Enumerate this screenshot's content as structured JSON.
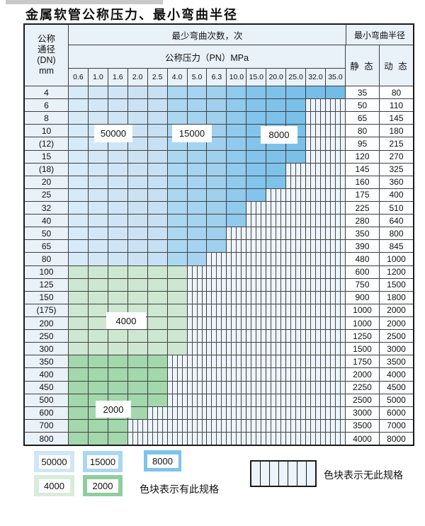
{
  "title": "金属软管公称压力、最小弯曲半径",
  "table": {
    "dn_header_lines": [
      "公称",
      "通径",
      "(DN)",
      "mm"
    ],
    "bend_cycles_label": "最少弯曲次数，次",
    "pn_label": "公称压力（PN）MPa",
    "min_radius_label": "最小弯曲半径",
    "static_label": "静 态",
    "dynamic_label": "动 态",
    "pn_columns": [
      "0.6",
      "1.0",
      "1.6",
      "2.0",
      "2.5",
      "4.0",
      "5.0",
      "6.3",
      "10.0",
      "15.0",
      "20.0",
      "25.0",
      "32.0",
      "35.0"
    ],
    "rows": [
      {
        "dn": "4",
        "colored": 14,
        "zone": "blue",
        "static": "35",
        "dynamic": "80"
      },
      {
        "dn": "6",
        "colored": 12,
        "zone": "blue",
        "static": "50",
        "dynamic": "110"
      },
      {
        "dn": "8",
        "colored": 12,
        "zone": "blue",
        "static": "65",
        "dynamic": "145"
      },
      {
        "dn": "10",
        "colored": 12,
        "zone": "blue",
        "static": "80",
        "dynamic": "180"
      },
      {
        "dn": "(12)",
        "colored": 12,
        "zone": "blue",
        "static": "95",
        "dynamic": "215"
      },
      {
        "dn": "15",
        "colored": 12,
        "zone": "blue",
        "static": "120",
        "dynamic": "270"
      },
      {
        "dn": "(18)",
        "colored": 11,
        "zone": "blue",
        "static": "145",
        "dynamic": "325"
      },
      {
        "dn": "20",
        "colored": 11,
        "zone": "blue",
        "static": "160",
        "dynamic": "360"
      },
      {
        "dn": "25",
        "colored": 10,
        "zone": "blue",
        "static": "175",
        "dynamic": "400"
      },
      {
        "dn": "32",
        "colored": 9,
        "zone": "blue",
        "static": "225",
        "dynamic": "510"
      },
      {
        "dn": "40",
        "colored": 9,
        "zone": "blue",
        "static": "280",
        "dynamic": "640"
      },
      {
        "dn": "50",
        "colored": 8,
        "zone": "blue",
        "static": "350",
        "dynamic": "800"
      },
      {
        "dn": "65",
        "colored": 8,
        "zone": "blue",
        "static": "390",
        "dynamic": "845"
      },
      {
        "dn": "80",
        "colored": 7,
        "zone": "blue",
        "static": "480",
        "dynamic": "1000"
      },
      {
        "dn": "100",
        "colored": 6,
        "zone": "green_light",
        "static": "600",
        "dynamic": "1200"
      },
      {
        "dn": "125",
        "colored": 6,
        "zone": "green_light",
        "static": "750",
        "dynamic": "1500"
      },
      {
        "dn": "150",
        "colored": 6,
        "zone": "green_light",
        "static": "900",
        "dynamic": "1800"
      },
      {
        "dn": "(175)",
        "colored": 6,
        "zone": "green_light",
        "static": "1000",
        "dynamic": "2000"
      },
      {
        "dn": "200",
        "colored": 6,
        "zone": "green_light",
        "static": "1000",
        "dynamic": "2000"
      },
      {
        "dn": "250",
        "colored": 6,
        "zone": "green_light",
        "static": "1250",
        "dynamic": "2500"
      },
      {
        "dn": "300",
        "colored": 6,
        "zone": "green_light",
        "static": "1500",
        "dynamic": "3000"
      },
      {
        "dn": "350",
        "colored": 5,
        "zone": "green_dark",
        "static": "1750",
        "dynamic": "3500"
      },
      {
        "dn": "400",
        "colored": 5,
        "zone": "green_dark",
        "static": "2000",
        "dynamic": "4000"
      },
      {
        "dn": "450",
        "colored": 5,
        "zone": "green_dark",
        "static": "2250",
        "dynamic": "4500"
      },
      {
        "dn": "500",
        "colored": 5,
        "zone": "green_dark",
        "static": "2500",
        "dynamic": "5000"
      },
      {
        "dn": "600",
        "colored": 4,
        "zone": "green_dark",
        "static": "3000",
        "dynamic": "6000"
      },
      {
        "dn": "700",
        "colored": 3,
        "zone": "green_dark",
        "static": "3500",
        "dynamic": "7000"
      },
      {
        "dn": "800",
        "colored": 3,
        "zone": "green_dark",
        "static": "4000",
        "dynamic": "8000"
      }
    ]
  },
  "region_labels": {
    "r50000": "50000",
    "r15000": "15000",
    "r8000": "8000",
    "r4000": "4000",
    "r2000": "2000"
  },
  "legend": {
    "items": [
      {
        "label": "50000",
        "color": "#cfe6f6"
      },
      {
        "label": "15000",
        "color": "#a9d6f0"
      },
      {
        "label": "8000",
        "color": "#7ec3ea"
      },
      {
        "label": "4000",
        "color": "#d9ecdc"
      },
      {
        "label": "2000",
        "color": "#90cd9e"
      }
    ],
    "has_spec_text": "色块表示有此规格",
    "no_spec_text": "色块表示无此规格"
  },
  "colors": {
    "blue_columns": [
      "#d7eaf8",
      "#d3e7f6",
      "#cfe5f5",
      "#cbe2f4",
      "#c7e0f3",
      "#abd7f1",
      "#a5d3f0",
      "#9fd0ee",
      "#90caed",
      "#82c4eb",
      "#7ec2ea",
      "#7ac0e9",
      "#76bee9",
      "#72bce8"
    ],
    "green_light": "#cde7d1",
    "green_dark": "#a3d7ac",
    "hatch_bg": "#edf4fb",
    "header_bg": "#e9f1f9",
    "grid_line": "#3f3f3f",
    "outer_border": "#1a1a1a"
  }
}
